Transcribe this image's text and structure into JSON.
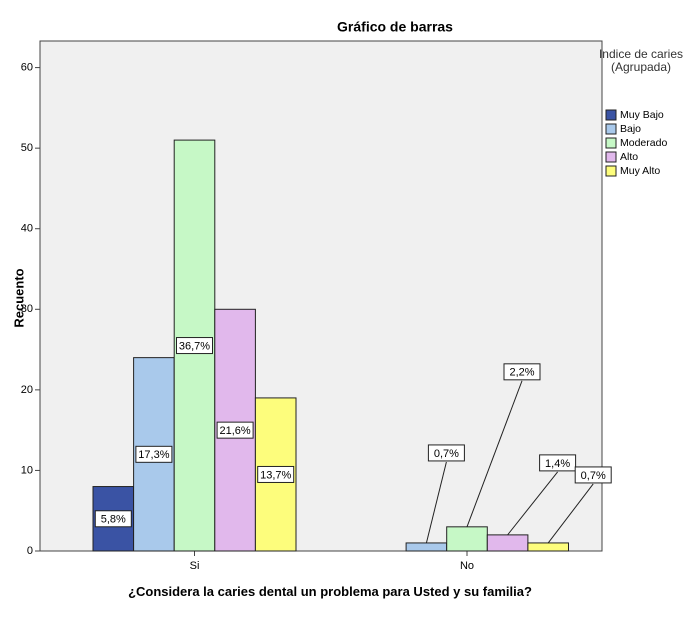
{
  "chart_data": {
    "type": "bar",
    "title": "Gráfico de barras",
    "x_label": "¿Considera la caries dental un problema para Usted y su familia?",
    "y_label": "Recuento",
    "legend_title": "Indice de caries (Agrupada)",
    "legend_position": "right",
    "categories": [
      "Si",
      "No"
    ],
    "series": [
      {
        "name": "Muy Bajo",
        "color": "#3a53a4",
        "values": [
          8,
          null
        ],
        "value_labels": [
          "5,8%",
          null
        ]
      },
      {
        "name": "Bajo",
        "color": "#a9c9eb",
        "values": [
          24,
          1
        ],
        "value_labels": [
          "17,3%",
          "0,7%"
        ]
      },
      {
        "name": "Moderado",
        "color": "#c6f8c6",
        "values": [
          51,
          3
        ],
        "value_labels": [
          "36,7%",
          "2,2%"
        ]
      },
      {
        "name": "Alto",
        "color": "#e1b8ec",
        "values": [
          30,
          2
        ],
        "value_labels": [
          "21,6%",
          "1,4%"
        ]
      },
      {
        "name": "Muy Alto",
        "color": "#fdfd7c",
        "values": [
          19,
          1
        ],
        "value_labels": [
          "13,7%",
          "0,7%"
        ]
      }
    ],
    "ylim": [
      0,
      63.3
    ],
    "yticks": [
      0,
      10,
      20,
      30,
      40,
      50,
      60
    ]
  }
}
